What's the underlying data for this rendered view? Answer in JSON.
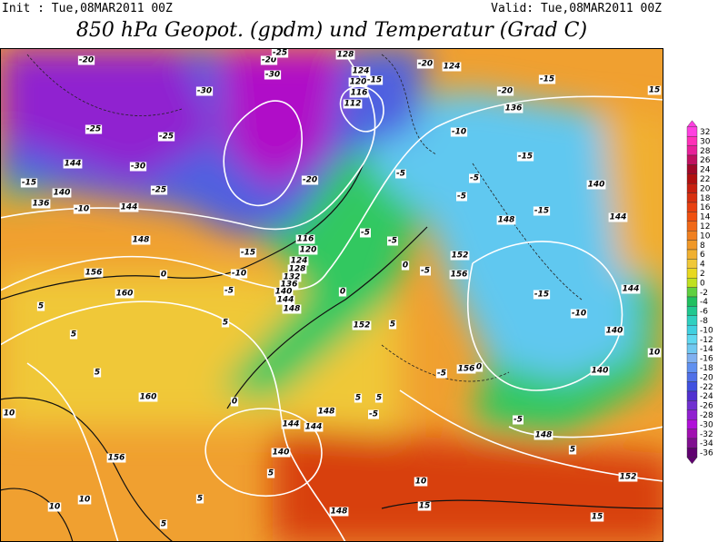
{
  "header": {
    "init": "Init : Tue,08MAR2011 00Z",
    "valid": "Valid: Tue,08MAR2011 00Z",
    "title": "850 hPa Geopot. (gpdm) und Temperatur (Grad C)"
  },
  "colorbar": {
    "levels": [
      32,
      30,
      28,
      26,
      24,
      22,
      20,
      18,
      16,
      14,
      12,
      10,
      8,
      6,
      4,
      2,
      0,
      -2,
      -4,
      -6,
      -8,
      -10,
      -12,
      -14,
      -16,
      -18,
      -20,
      -22,
      -24,
      -26,
      -28,
      -30,
      -32,
      -34,
      -36
    ],
    "colors": [
      "#ff40e0",
      "#ff30b8",
      "#e8209a",
      "#c01060",
      "#a00828",
      "#b01010",
      "#c82010",
      "#d83010",
      "#e84010",
      "#f05010",
      "#f06818",
      "#f08020",
      "#f09828",
      "#f0b030",
      "#f0c838",
      "#e8d820",
      "#c0e020",
      "#60d040",
      "#20c060",
      "#20c890",
      "#30d0c0",
      "#40d0e0",
      "#60d8f0",
      "#70c8f0",
      "#80b0f0",
      "#6090f0",
      "#5070e8",
      "#4050e0",
      "#5030d0",
      "#7030d0",
      "#9020d0",
      "#b010d8",
      "#a010b0",
      "#801090",
      "#600070"
    ]
  },
  "contour_labels": [
    "-20",
    "-30",
    "-20",
    "-25",
    "-30",
    "128",
    "124",
    "120",
    "116",
    "112",
    "-15",
    "-20",
    "124",
    "-20",
    "-15",
    "15",
    "136",
    "-25",
    "-25",
    "-30",
    "-25",
    "144",
    "-15",
    "140",
    "136",
    "-10",
    "144",
    "148",
    "156",
    "160",
    "-15",
    "-10",
    "-5",
    "116",
    "120",
    "124",
    "128",
    "132",
    "136",
    "140",
    "144",
    "148",
    "0",
    "-5",
    "-5",
    "0",
    "-20",
    "-10",
    "-5",
    "-5",
    "-5",
    "-15",
    "140",
    "144",
    "-15",
    "148",
    "152",
    "156",
    "0",
    "-5",
    "-15",
    "-10",
    "144",
    "140",
    "152",
    "5",
    "156",
    "0",
    "-5",
    "140",
    "-5",
    "148",
    "5",
    "144",
    "160",
    "148",
    "144",
    "140",
    "5",
    "156",
    "5",
    "5",
    "5",
    "10",
    "10",
    "10",
    "10",
    "15",
    "15",
    "152",
    "148",
    "5",
    "5",
    "5",
    "0",
    "-5",
    "5",
    "5",
    "10"
  ]
}
